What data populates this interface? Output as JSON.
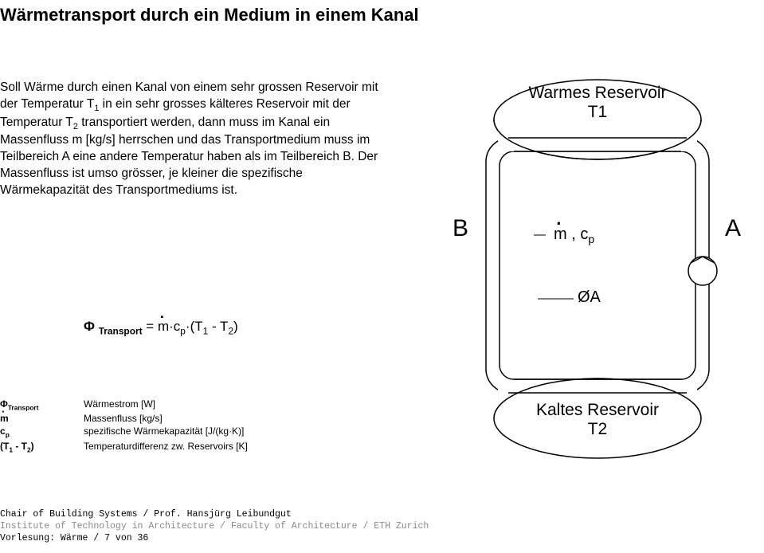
{
  "title": "Wärmetransport durch ein Medium in einem Kanal",
  "paragraph_html": "Soll Wärme durch einen Kanal von einem sehr grossen Reservoir mit der Temperatur T<sub>1</sub> in ein sehr grosses kälteres Reservoir mit der Temperatur T<sub>2</sub> transportiert werden, dann muss im Kanal ein Massenfluss m [kg/s] herrschen und das Transportmedium muss im Teilbereich A eine andere Temperatur haben als im Teilbereich B. Der Massenfluss ist umso grösser, je kleiner die spezifische Wärmekapazität des Transportmediums ist.",
  "formula": {
    "phi": "Φ",
    "sub": "Transport",
    "eq": " = ",
    "m": "m",
    "rest1": "·c",
    "psub": "p",
    "rest2": "·(T",
    "one": "1",
    "minus": " - T",
    "two": "2",
    "close": ")"
  },
  "legend": [
    {
      "sym_html": "Φ<sub>Transport</sub>",
      "desc": "Wärmestrom [W]"
    },
    {
      "sym_html": "<span class=\"dot-over\">m</span>",
      "desc": "Massenfluss [kg/s]"
    },
    {
      "sym_html": "c<sub>p</sub>",
      "desc": "spezifische Wärmekapazität [J/(kg·K)]"
    },
    {
      "sym_html": "(T<sub>1</sub> - T<sub>2</sub>)",
      "desc": "Temperaturdifferenz zw. Reservoirs [K]"
    }
  ],
  "diagram": {
    "warm": "Warmes Reservoir",
    "t1": "T1",
    "cold": "Kaltes Reservoir",
    "t2": "T2",
    "A": "A",
    "B": "B",
    "mcp_html": "<span class=\"dot-over\">m</span> , c<sub>p</sub>",
    "OA": "ØA",
    "stroke": "#000000",
    "stroke_w": 1.5,
    "bg": "#ffffff"
  },
  "footer": {
    "l1": "Chair of Building Systems / Prof. Hansjürg Leibundgut",
    "l2": "Institute of Technology in Architecture / Faculty of Architecture / ETH Zurich",
    "l3": "Vorlesung: Wärme /  7 von 36"
  }
}
